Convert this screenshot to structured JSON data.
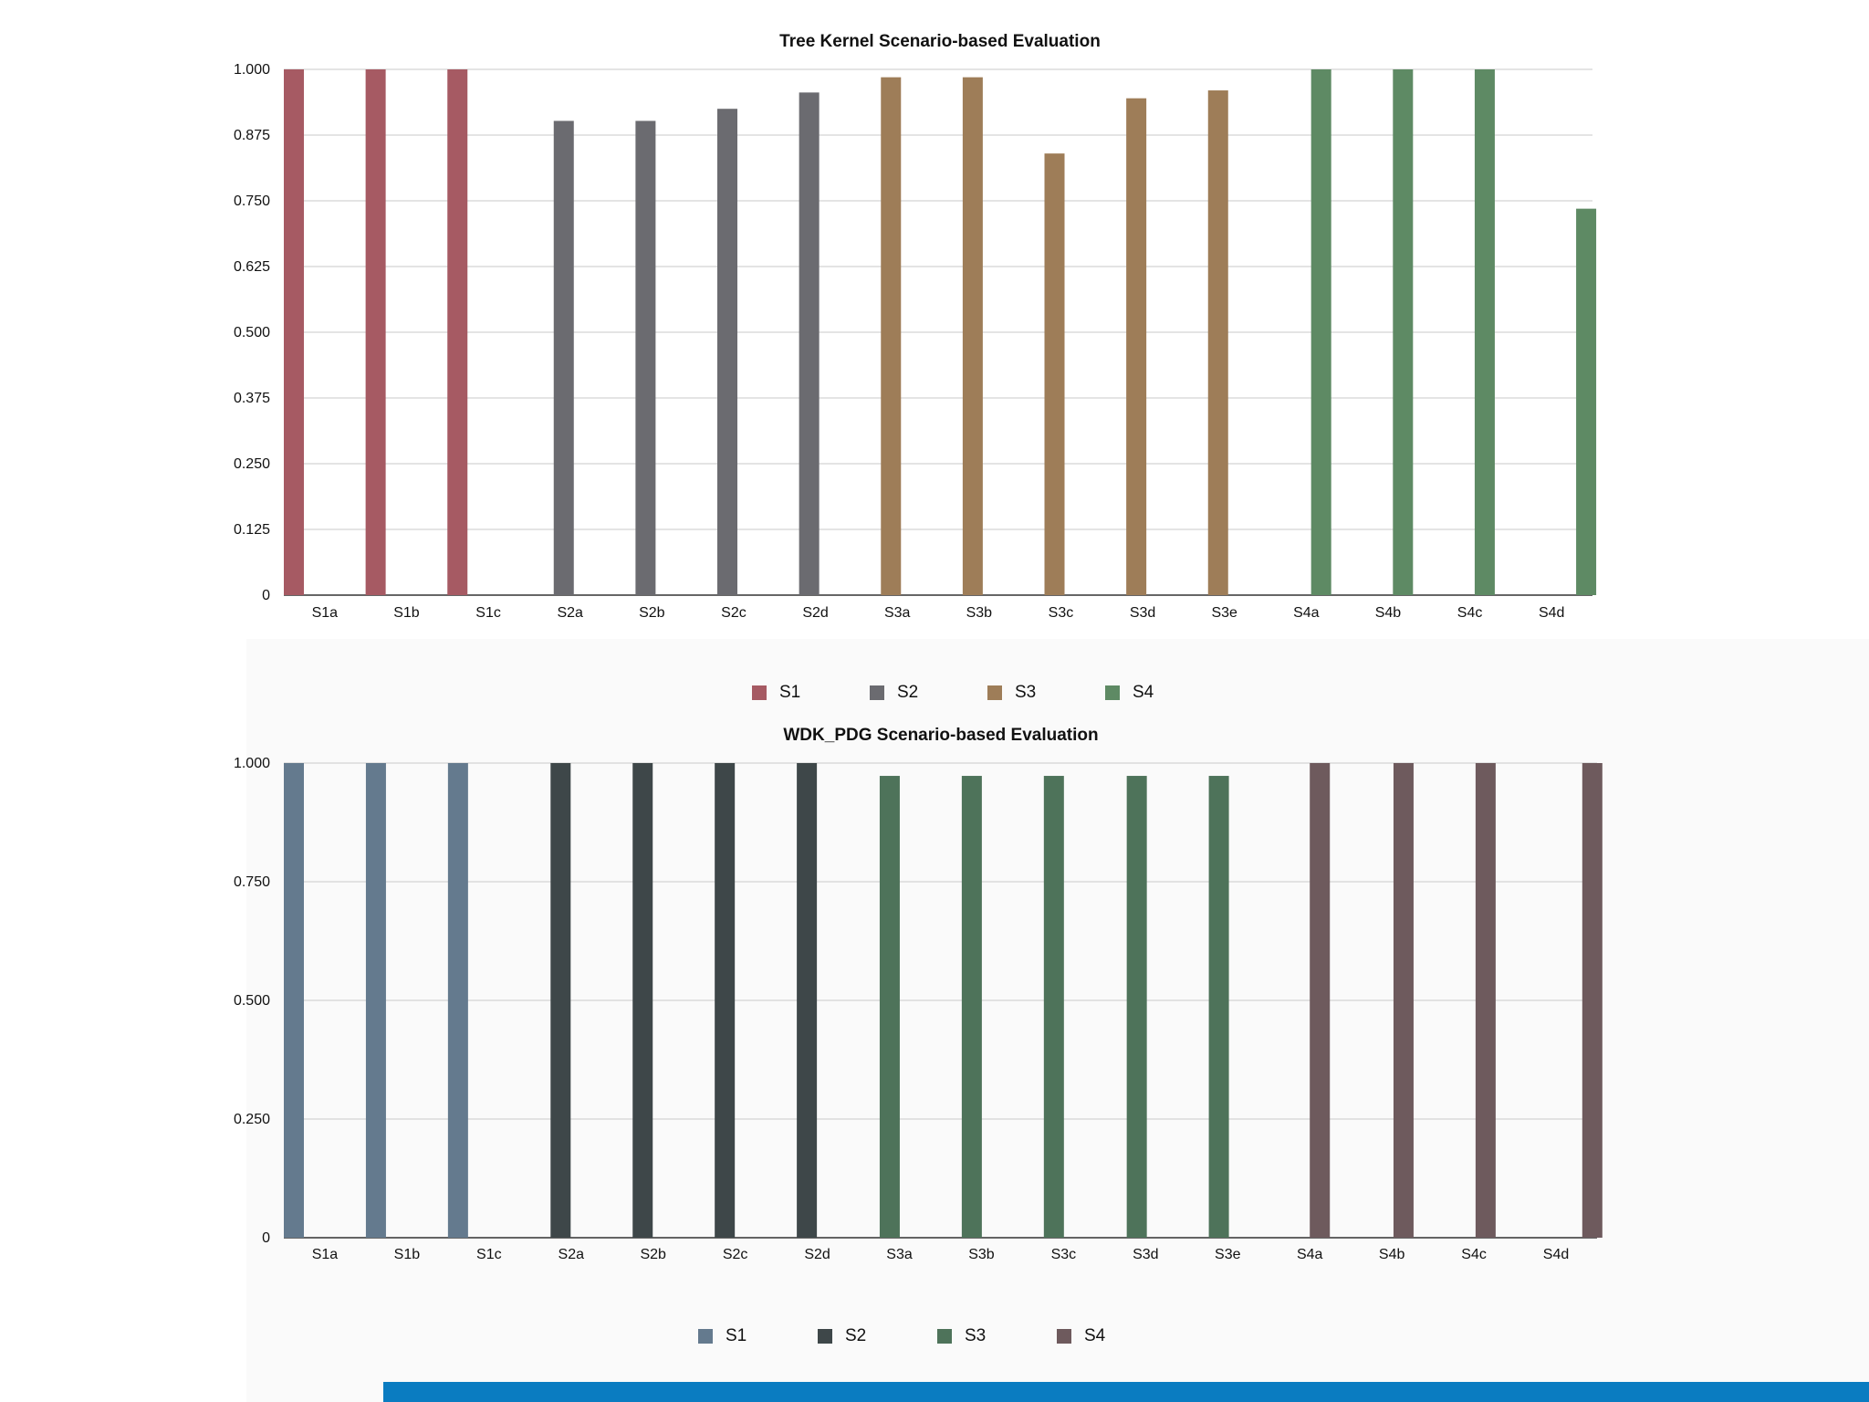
{
  "chart_data": [
    {
      "type": "bar",
      "title": "Tree Kernel Scenario-based Evaluation",
      "categories": [
        "S1a",
        "S1b",
        "S1c",
        "S2a",
        "S2b",
        "S2c",
        "S2d",
        "S3a",
        "S3b",
        "S3c",
        "S3d",
        "S3e",
        "S4a",
        "S4b",
        "S4c",
        "S4d"
      ],
      "values": [
        1.0,
        1.0,
        1.0,
        0.902,
        0.902,
        0.925,
        0.956,
        0.985,
        0.985,
        0.84,
        0.945,
        0.96,
        1.0,
        1.0,
        1.0,
        0.735
      ],
      "groups": [
        "S1",
        "S1",
        "S1",
        "S2",
        "S2",
        "S2",
        "S2",
        "S3",
        "S3",
        "S3",
        "S3",
        "S3",
        "S4",
        "S4",
        "S4",
        "S4"
      ],
      "yticks": [
        "0",
        "0.125",
        "0.250",
        "0.375",
        "0.500",
        "0.625",
        "0.750",
        "0.875",
        "1.000"
      ],
      "ylim": [
        0,
        1
      ],
      "grid": true,
      "legend": {
        "placement": "bottom-center",
        "items": [
          {
            "label": "S1",
            "color": "#a65a63"
          },
          {
            "label": "S2",
            "color": "#6b6b70"
          },
          {
            "label": "S3",
            "color": "#9e7d58"
          },
          {
            "label": "S4",
            "color": "#5e8a64"
          }
        ]
      }
    },
    {
      "type": "bar",
      "title": "WDK_PDG Scenario-based Evaluation",
      "categories": [
        "S1a",
        "S1b",
        "S1c",
        "S2a",
        "S2b",
        "S2c",
        "S2d",
        "S3a",
        "S3b",
        "S3c",
        "S3d",
        "S3e",
        "S4a",
        "S4b",
        "S4c",
        "S4d"
      ],
      "values": [
        1.0,
        1.0,
        1.0,
        1.0,
        1.0,
        1.0,
        1.0,
        0.973,
        0.973,
        0.973,
        0.973,
        0.973,
        1.0,
        1.0,
        1.0,
        1.0
      ],
      "groups": [
        "S1",
        "S1",
        "S1",
        "S2",
        "S2",
        "S2",
        "S2",
        "S3",
        "S3",
        "S3",
        "S3",
        "S3",
        "S4",
        "S4",
        "S4",
        "S4"
      ],
      "yticks": [
        "0",
        "0.250",
        "0.500",
        "0.750",
        "1.000"
      ],
      "ylim": [
        0,
        1
      ],
      "grid": true,
      "legend": {
        "placement": "bottom-center",
        "items": [
          {
            "label": "S1",
            "color": "#647a8e"
          },
          {
            "label": "S2",
            "color": "#3e4749"
          },
          {
            "label": "S3",
            "color": "#4e735a"
          },
          {
            "label": "S4",
            "color": "#6e5a5d"
          }
        ]
      }
    }
  ]
}
